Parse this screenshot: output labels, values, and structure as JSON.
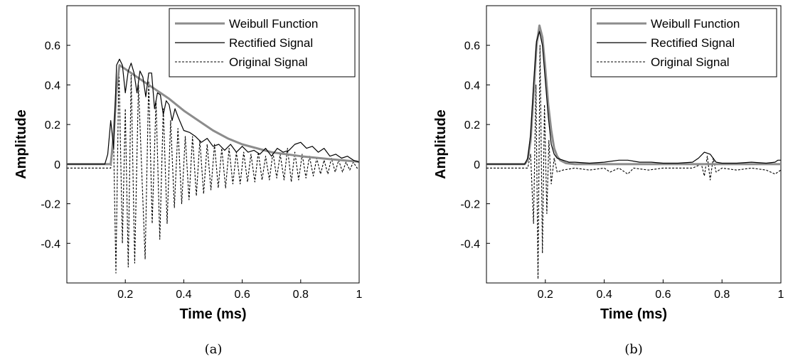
{
  "chart_data": [
    {
      "type": "line",
      "caption": "(a)",
      "xlabel": "Time (ms)",
      "ylabel": "Amplitude",
      "xlim": [
        0,
        1
      ],
      "ylim": [
        -0.6,
        0.8
      ],
      "x_ticks": [
        0.2,
        0.4,
        0.6,
        0.8,
        1
      ],
      "x_tick_labels": [
        "0.2",
        "0.4",
        "0.6",
        "0.8",
        "1"
      ],
      "y_ticks": [
        -0.4,
        -0.2,
        0,
        0.2,
        0.4,
        0.6
      ],
      "y_tick_labels": [
        "-0.4",
        "-0.2",
        "0",
        "0.2",
        "0.4",
        "0.6"
      ],
      "legend_position": "top-right",
      "series": [
        {
          "name": "Weibull Function",
          "style": "solid-thick",
          "color": "#8c8c8c",
          "x": [
            0,
            0.15,
            0.16,
            0.17,
            0.18,
            0.2,
            0.25,
            0.3,
            0.35,
            0.4,
            0.45,
            0.5,
            0.55,
            0.6,
            0.7,
            0.8,
            0.9,
            1.0
          ],
          "y": [
            0,
            0,
            0.15,
            0.38,
            0.5,
            0.48,
            0.43,
            0.38,
            0.33,
            0.27,
            0.22,
            0.17,
            0.13,
            0.1,
            0.06,
            0.04,
            0.025,
            0.012
          ]
        },
        {
          "name": "Rectified Signal",
          "style": "solid",
          "color": "#000000",
          "x": [
            0,
            0.13,
            0.14,
            0.15,
            0.16,
            0.17,
            0.18,
            0.19,
            0.2,
            0.21,
            0.22,
            0.23,
            0.24,
            0.25,
            0.26,
            0.27,
            0.28,
            0.29,
            0.3,
            0.31,
            0.32,
            0.33,
            0.34,
            0.35,
            0.36,
            0.37,
            0.38,
            0.4,
            0.42,
            0.44,
            0.46,
            0.48,
            0.5,
            0.52,
            0.54,
            0.56,
            0.58,
            0.6,
            0.62,
            0.64,
            0.66,
            0.68,
            0.7,
            0.72,
            0.74,
            0.76,
            0.78,
            0.8,
            0.82,
            0.84,
            0.86,
            0.88,
            0.9,
            0.92,
            0.94,
            0.96,
            0.98,
            1.0
          ],
          "y": [
            0,
            0,
            0.05,
            0.22,
            0.08,
            0.5,
            0.53,
            0.5,
            0.36,
            0.47,
            0.51,
            0.46,
            0.36,
            0.47,
            0.44,
            0.34,
            0.46,
            0.46,
            0.28,
            0.36,
            0.35,
            0.25,
            0.32,
            0.3,
            0.22,
            0.28,
            0.24,
            0.17,
            0.16,
            0.14,
            0.11,
            0.13,
            0.09,
            0.1,
            0.07,
            0.1,
            0.06,
            0.09,
            0.06,
            0.07,
            0.05,
            0.08,
            0.04,
            0.08,
            0.06,
            0.07,
            0.1,
            0.11,
            0.08,
            0.09,
            0.06,
            0.08,
            0.04,
            0.05,
            0.03,
            0.04,
            0.02,
            0.01
          ]
        },
        {
          "name": "Original Signal",
          "style": "dashed",
          "color": "#000000",
          "x": [
            0,
            0.15,
            0.16,
            0.168,
            0.178,
            0.19,
            0.2,
            0.21,
            0.22,
            0.232,
            0.245,
            0.258,
            0.268,
            0.28,
            0.292,
            0.305,
            0.318,
            0.33,
            0.343,
            0.355,
            0.368,
            0.38,
            0.393,
            0.405,
            0.418,
            0.43,
            0.443,
            0.455,
            0.468,
            0.48,
            0.493,
            0.505,
            0.518,
            0.53,
            0.543,
            0.555,
            0.568,
            0.58,
            0.593,
            0.605,
            0.618,
            0.63,
            0.643,
            0.655,
            0.668,
            0.68,
            0.693,
            0.705,
            0.718,
            0.73,
            0.743,
            0.755,
            0.768,
            0.78,
            0.793,
            0.805,
            0.818,
            0.83,
            0.843,
            0.855,
            0.868,
            0.88,
            0.893,
            0.905,
            0.918,
            0.93,
            0.943,
            0.955,
            0.968,
            0.98,
            0.993,
            1.0
          ],
          "y": [
            -0.02,
            -0.02,
            0.1,
            -0.55,
            0.5,
            -0.4,
            0.28,
            -0.52,
            0.45,
            -0.5,
            0.4,
            -0.1,
            -0.48,
            0.42,
            -0.3,
            0.32,
            -0.38,
            0.28,
            -0.3,
            0.22,
            -0.22,
            0.18,
            -0.2,
            0.14,
            -0.18,
            0.14,
            -0.16,
            0.12,
            -0.15,
            0.1,
            -0.13,
            0.1,
            -0.12,
            0.08,
            -0.12,
            0.08,
            -0.1,
            0.06,
            -0.1,
            0.06,
            -0.09,
            0.05,
            -0.09,
            0.06,
            -0.08,
            0.04,
            -0.08,
            0.06,
            -0.07,
            0.05,
            -0.08,
            0.08,
            -0.09,
            0.06,
            -0.08,
            0.05,
            -0.07,
            0.04,
            -0.06,
            0.03,
            -0.05,
            0.02,
            -0.05,
            0.03,
            -0.04,
            0.02,
            -0.04,
            0.01,
            -0.03,
            0.01,
            -0.02,
            -0.02
          ]
        }
      ]
    },
    {
      "type": "line",
      "caption": "(b)",
      "xlabel": "Time (ms)",
      "ylabel": "Amplitude",
      "xlim": [
        0,
        1
      ],
      "ylim": [
        -0.6,
        0.8
      ],
      "x_ticks": [
        0.2,
        0.4,
        0.6,
        0.8,
        1
      ],
      "x_tick_labels": [
        "0.2",
        "0.4",
        "0.6",
        "0.8",
        "1"
      ],
      "y_ticks": [
        -0.4,
        -0.2,
        0,
        0.2,
        0.4,
        0.6
      ],
      "y_tick_labels": [
        "-0.4",
        "-0.2",
        "0",
        "0.2",
        "0.4",
        "0.6"
      ],
      "legend_position": "top-right",
      "series": [
        {
          "name": "Weibull Function",
          "style": "solid-thick",
          "color": "#8c8c8c",
          "x": [
            0,
            0.13,
            0.14,
            0.15,
            0.16,
            0.17,
            0.18,
            0.19,
            0.2,
            0.21,
            0.22,
            0.23,
            0.24,
            0.25,
            0.27,
            0.3,
            1.0
          ],
          "y": [
            0,
            0,
            0.02,
            0.12,
            0.35,
            0.6,
            0.7,
            0.64,
            0.48,
            0.3,
            0.17,
            0.08,
            0.04,
            0.02,
            0.005,
            0,
            0
          ]
        },
        {
          "name": "Rectified Signal",
          "style": "solid",
          "color": "#000000",
          "x": [
            0,
            0.13,
            0.14,
            0.15,
            0.16,
            0.17,
            0.18,
            0.19,
            0.2,
            0.21,
            0.22,
            0.23,
            0.24,
            0.26,
            0.28,
            0.3,
            0.35,
            0.4,
            0.45,
            0.48,
            0.52,
            0.56,
            0.6,
            0.65,
            0.7,
            0.72,
            0.74,
            0.76,
            0.78,
            0.8,
            0.85,
            0.9,
            0.95,
            0.98,
            0.99,
            1.0
          ],
          "y": [
            0,
            0,
            0.03,
            0.15,
            0.4,
            0.62,
            0.67,
            0.6,
            0.42,
            0.24,
            0.1,
            0.05,
            0.03,
            0.02,
            0.01,
            0.01,
            0.005,
            0.01,
            0.02,
            0.02,
            0.01,
            0.01,
            0.005,
            0.005,
            0.01,
            0.03,
            0.06,
            0.05,
            0.01,
            0.005,
            0.005,
            0.01,
            0.005,
            0.01,
            0.02,
            0.02
          ]
        },
        {
          "name": "Original Signal",
          "style": "dashed",
          "color": "#000000",
          "x": [
            0,
            0.14,
            0.15,
            0.16,
            0.168,
            0.175,
            0.182,
            0.19,
            0.197,
            0.205,
            0.212,
            0.22,
            0.23,
            0.24,
            0.26,
            0.3,
            0.35,
            0.4,
            0.42,
            0.45,
            0.48,
            0.5,
            0.55,
            0.6,
            0.65,
            0.7,
            0.73,
            0.74,
            0.75,
            0.76,
            0.77,
            0.78,
            0.8,
            0.85,
            0.9,
            0.95,
            0.98,
            1.0
          ],
          "y": [
            -0.02,
            -0.02,
            0.05,
            -0.3,
            0.4,
            -0.58,
            0.6,
            -0.45,
            0.3,
            -0.25,
            0.12,
            -0.1,
            0.03,
            -0.04,
            -0.03,
            -0.02,
            -0.03,
            -0.02,
            -0.04,
            -0.02,
            -0.05,
            -0.02,
            -0.03,
            -0.02,
            -0.02,
            -0.02,
            0.0,
            -0.06,
            0.04,
            -0.08,
            0.03,
            -0.04,
            -0.02,
            -0.03,
            -0.02,
            -0.03,
            -0.05,
            -0.03
          ]
        }
      ]
    }
  ]
}
